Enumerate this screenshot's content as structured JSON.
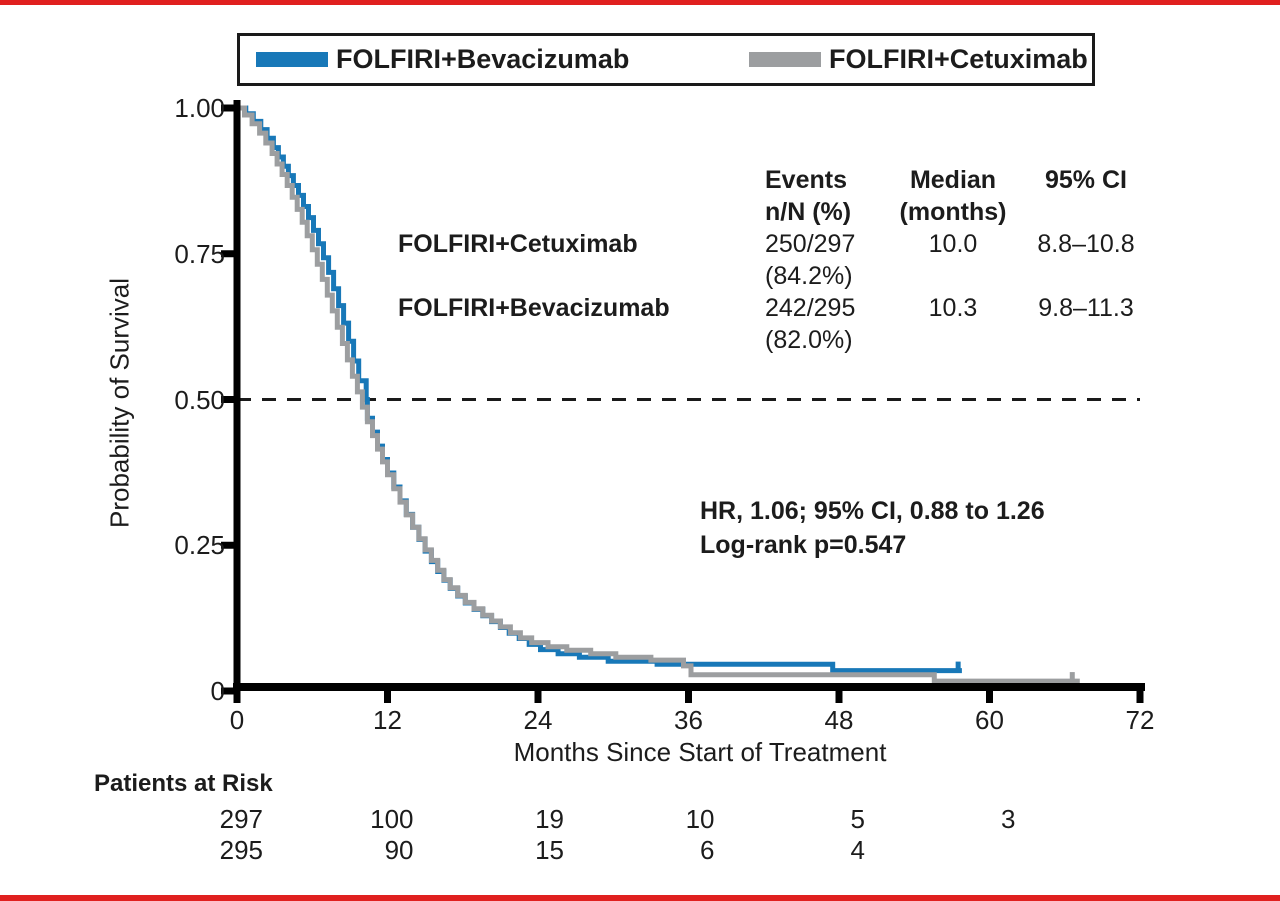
{
  "page": {
    "accent_bar_color": "#e0201f",
    "background": "#ffffff"
  },
  "legend": {
    "items": [
      {
        "label": "FOLFIRI+Bevacizumab",
        "color": "#1878b8"
      },
      {
        "label": "FOLFIRI+Cetuximab",
        "color": "#9c9ea0"
      }
    ]
  },
  "summary_table": {
    "headers": {
      "events_line1": "Events",
      "events_line2": "n/N (%)",
      "median_line1": "Median",
      "median_line2": "(months)",
      "ci": "95% CI"
    },
    "rows": [
      {
        "label": "FOLFIRI+Cetuximab",
        "events": "250/297",
        "events_pct": "(84.2%)",
        "median": "10.0",
        "ci": "8.8–10.8"
      },
      {
        "label": "FOLFIRI+Bevacizumab",
        "events": "242/295",
        "events_pct": "(82.0%)",
        "median": "10.3",
        "ci": "9.8–11.3"
      }
    ]
  },
  "annotation": {
    "line1": "HR, 1.06; 95% CI, 0.88 to 1.26",
    "line2": "Log-rank p=0.547"
  },
  "chart_data": {
    "type": "line",
    "subtype": "kaplan-meier-step",
    "xlabel": "Months Since Start of Treatment",
    "ylabel": "Probability of Survival",
    "xlim": [
      0,
      72
    ],
    "ylim": [
      0,
      1
    ],
    "x_ticks": [
      {
        "v": 0,
        "label": "0"
      },
      {
        "v": 12,
        "label": "12"
      },
      {
        "v": 24,
        "label": "24"
      },
      {
        "v": 36,
        "label": "36"
      },
      {
        "v": 48,
        "label": "48"
      },
      {
        "v": 60,
        "label": "60"
      },
      {
        "v": 72,
        "label": "72"
      }
    ],
    "y_ticks": [
      {
        "v": 1.0,
        "label": "1.00"
      },
      {
        "v": 0.75,
        "label": "0.75"
      },
      {
        "v": 0.5,
        "label": "0.50"
      },
      {
        "v": 0.25,
        "label": "0.25"
      },
      {
        "v": 0,
        "label": "0"
      }
    ],
    "reference_line": {
      "y": 0.5,
      "style": "dashed",
      "color": "#1a1a1a"
    },
    "grid": false,
    "legend_position": "top",
    "series": [
      {
        "name": "FOLFIRI+Bevacizumab",
        "color": "#1878b8",
        "median_months": 10.3,
        "end_month": 57.8,
        "censor_marks": [
          [
            57.5,
            0.035
          ]
        ],
        "steps": [
          [
            0.7,
            0.99
          ],
          [
            1.3,
            0.977
          ],
          [
            1.9,
            0.963
          ],
          [
            2.4,
            0.948
          ],
          [
            2.9,
            0.932
          ],
          [
            3.3,
            0.916
          ],
          [
            3.7,
            0.9
          ],
          [
            4.1,
            0.884
          ],
          [
            4.5,
            0.867
          ],
          [
            4.9,
            0.85
          ],
          [
            5.3,
            0.831
          ],
          [
            5.7,
            0.812
          ],
          [
            6.1,
            0.79
          ],
          [
            6.5,
            0.767
          ],
          [
            6.9,
            0.743
          ],
          [
            7.3,
            0.718
          ],
          [
            7.7,
            0.69
          ],
          [
            8.1,
            0.661
          ],
          [
            8.5,
            0.631
          ],
          [
            8.9,
            0.6
          ],
          [
            9.3,
            0.566
          ],
          [
            9.7,
            0.532
          ],
          [
            10.3,
            0.5
          ],
          [
            10.4,
            0.468
          ],
          [
            10.8,
            0.444
          ],
          [
            11.2,
            0.42
          ],
          [
            11.6,
            0.397
          ],
          [
            12.0,
            0.374
          ],
          [
            12.5,
            0.35
          ],
          [
            13.0,
            0.326
          ],
          [
            13.5,
            0.303
          ],
          [
            14.0,
            0.281
          ],
          [
            14.5,
            0.26
          ],
          [
            15.0,
            0.24
          ],
          [
            15.5,
            0.222
          ],
          [
            16.0,
            0.205
          ],
          [
            16.5,
            0.19
          ],
          [
            17.0,
            0.176
          ],
          [
            17.6,
            0.163
          ],
          [
            18.2,
            0.151
          ],
          [
            18.9,
            0.14
          ],
          [
            19.6,
            0.129
          ],
          [
            20.3,
            0.119
          ],
          [
            21.0,
            0.109
          ],
          [
            21.7,
            0.099
          ],
          [
            22.5,
            0.09
          ],
          [
            23.3,
            0.08
          ],
          [
            24.2,
            0.071
          ],
          [
            25.6,
            0.064
          ],
          [
            27.3,
            0.058
          ],
          [
            29.6,
            0.051
          ],
          [
            33.5,
            0.046
          ],
          [
            47.5,
            0.035
          ]
        ]
      },
      {
        "name": "FOLFIRI+Cetuximab",
        "color": "#9c9ea0",
        "median_months": 10.0,
        "end_month": 70.4,
        "censor_marks": [
          [
            66.6,
            0.017
          ]
        ],
        "steps": [
          [
            0.6,
            0.988
          ],
          [
            1.2,
            0.973
          ],
          [
            1.8,
            0.957
          ],
          [
            2.3,
            0.94
          ],
          [
            2.8,
            0.922
          ],
          [
            3.2,
            0.904
          ],
          [
            3.6,
            0.886
          ],
          [
            4.0,
            0.867
          ],
          [
            4.4,
            0.847
          ],
          [
            4.8,
            0.826
          ],
          [
            5.2,
            0.804
          ],
          [
            5.6,
            0.781
          ],
          [
            6.0,
            0.757
          ],
          [
            6.4,
            0.732
          ],
          [
            6.8,
            0.706
          ],
          [
            7.2,
            0.679
          ],
          [
            7.6,
            0.652
          ],
          [
            8.0,
            0.624
          ],
          [
            8.4,
            0.596
          ],
          [
            8.8,
            0.568
          ],
          [
            9.2,
            0.54
          ],
          [
            9.6,
            0.513
          ],
          [
            10.0,
            0.487
          ],
          [
            10.4,
            0.462
          ],
          [
            10.8,
            0.438
          ],
          [
            11.2,
            0.415
          ],
          [
            11.6,
            0.393
          ],
          [
            12.0,
            0.371
          ],
          [
            12.5,
            0.347
          ],
          [
            13.0,
            0.324
          ],
          [
            13.5,
            0.302
          ],
          [
            14.0,
            0.281
          ],
          [
            14.5,
            0.261
          ],
          [
            15.0,
            0.242
          ],
          [
            15.5,
            0.224
          ],
          [
            16.0,
            0.207
          ],
          [
            16.5,
            0.191
          ],
          [
            17.0,
            0.177
          ],
          [
            17.6,
            0.164
          ],
          [
            18.2,
            0.152
          ],
          [
            18.9,
            0.141
          ],
          [
            19.6,
            0.13
          ],
          [
            20.3,
            0.12
          ],
          [
            21.0,
            0.11
          ],
          [
            21.8,
            0.1
          ],
          [
            22.6,
            0.091
          ],
          [
            23.5,
            0.083
          ],
          [
            24.8,
            0.076
          ],
          [
            26.3,
            0.07
          ],
          [
            28.2,
            0.064
          ],
          [
            30.2,
            0.058
          ],
          [
            33.0,
            0.053
          ],
          [
            35.6,
            0.043
          ],
          [
            36.2,
            0.028
          ],
          [
            55.6,
            0.017
          ],
          [
            67.0,
            0.005
          ]
        ]
      }
    ],
    "patients_at_risk": {
      "label": "Patients at Risk",
      "times": [
        0,
        12,
        24,
        36,
        48,
        60
      ],
      "rows": [
        {
          "name": "FOLFIRI+Cetuximab",
          "counts": [
            "297",
            "100",
            "19",
            "10",
            "5",
            "3"
          ]
        },
        {
          "name": "FOLFIRI+Bevacizumab",
          "counts": [
            "295",
            "90",
            "15",
            "6",
            "4",
            ""
          ]
        }
      ]
    }
  }
}
